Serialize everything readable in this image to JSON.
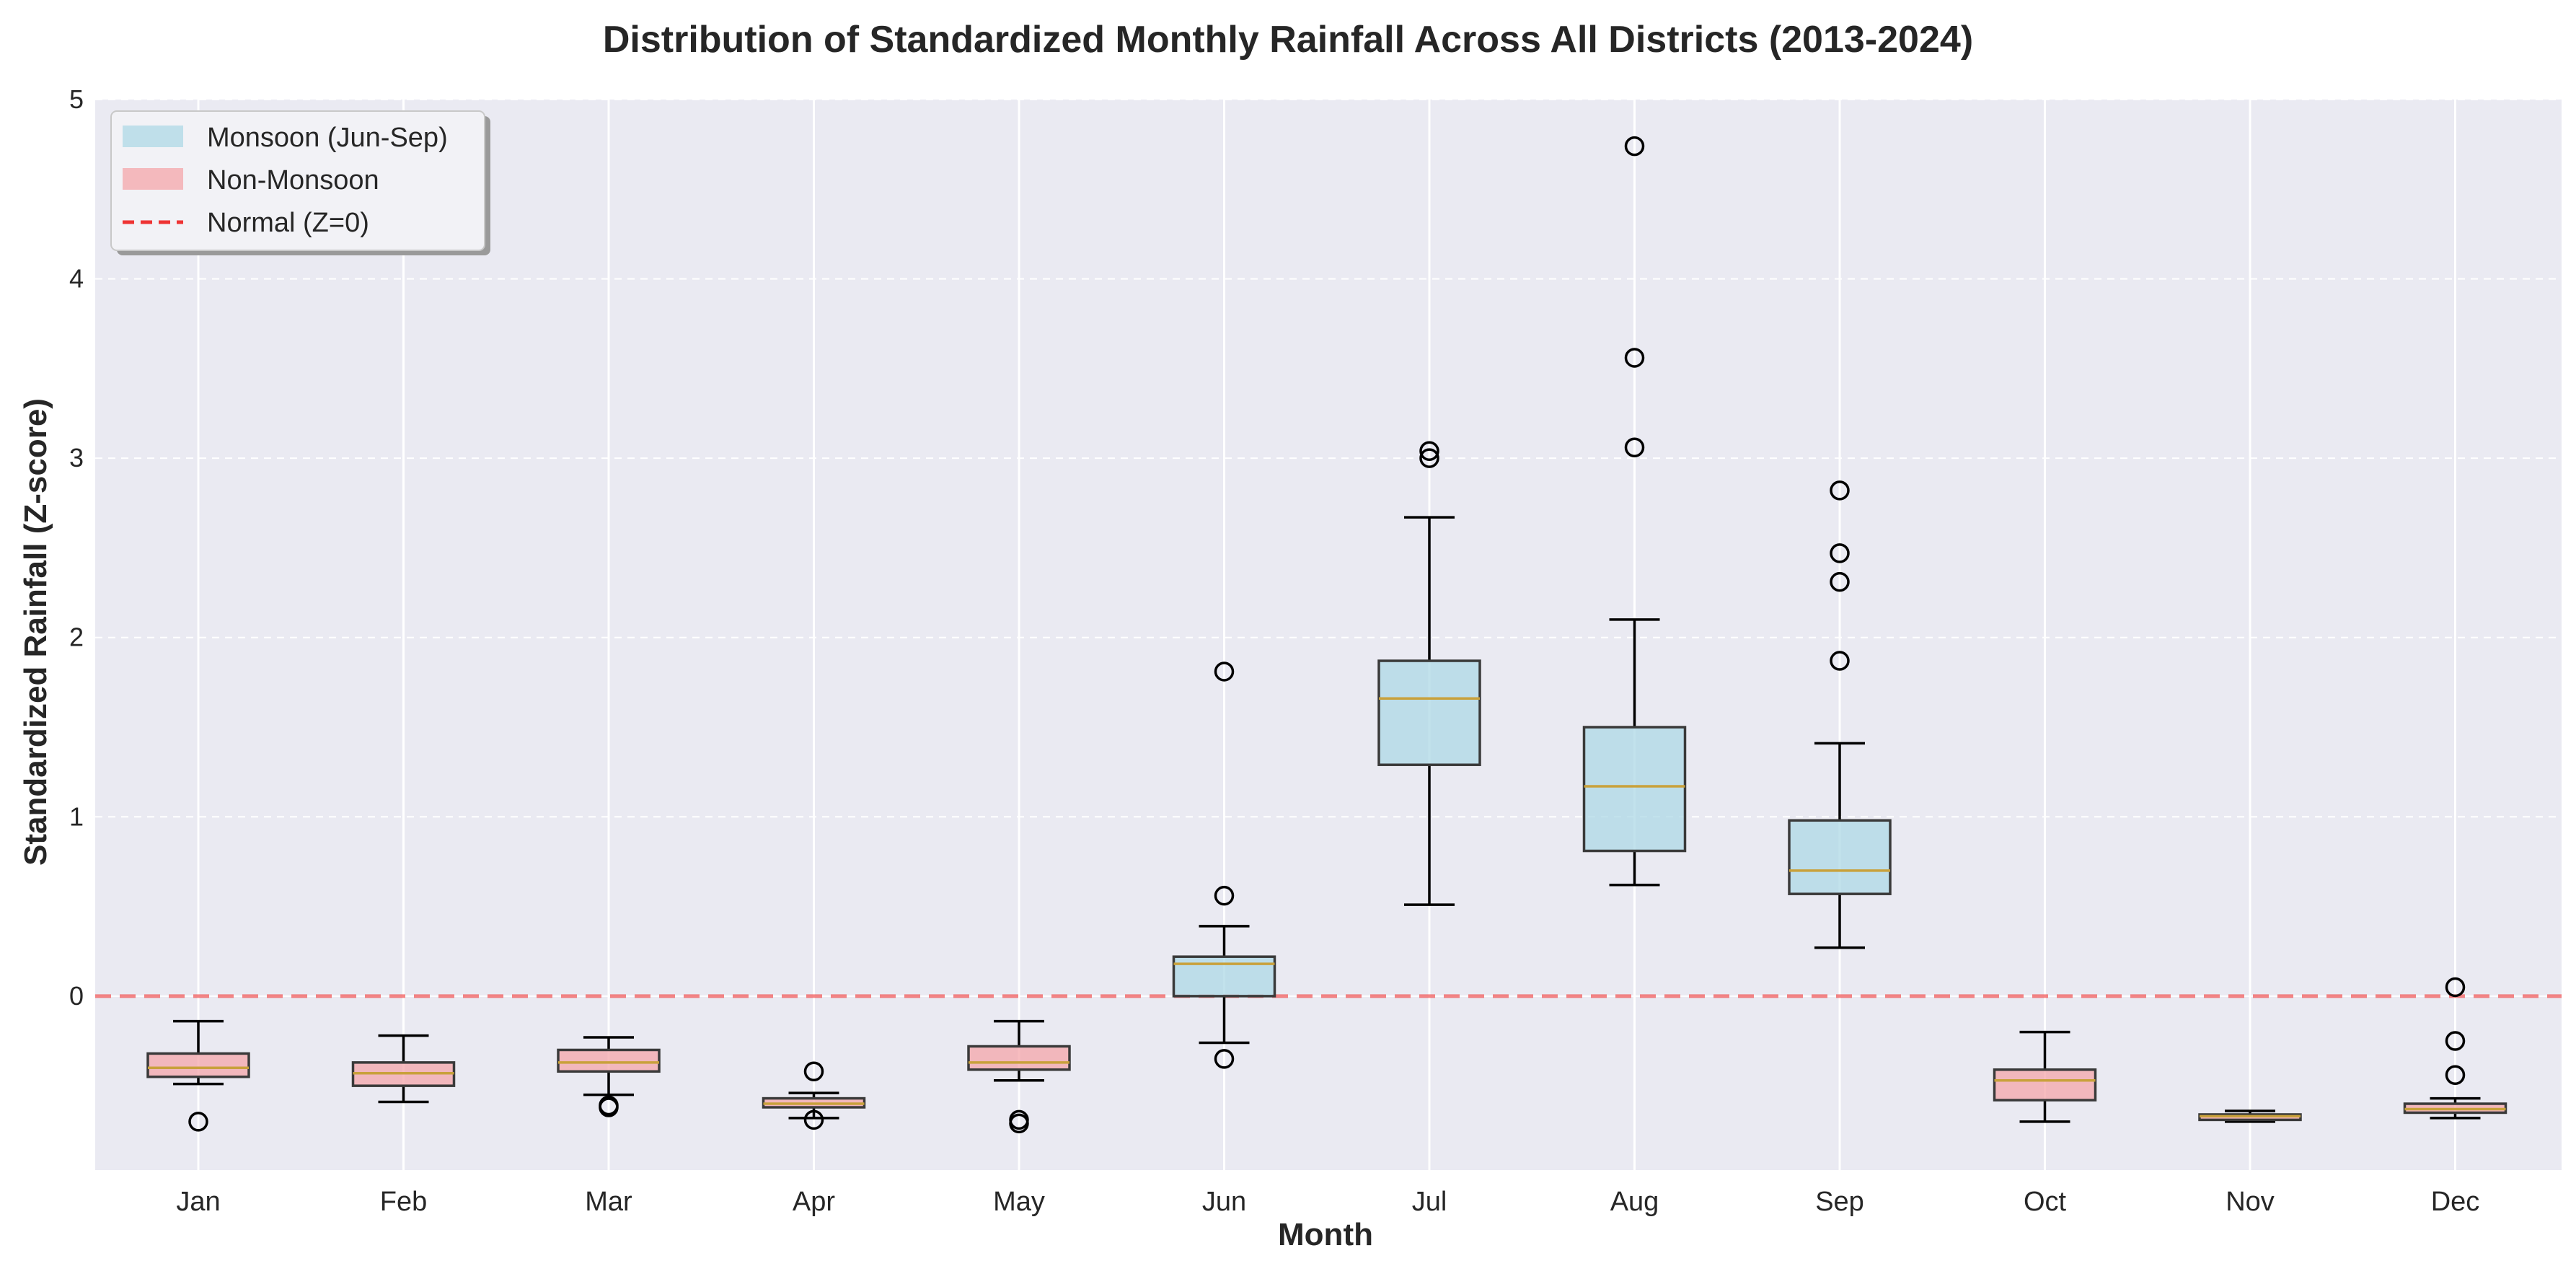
{
  "chart_data": {
    "type": "box",
    "title": "Distribution of Standardized Monthly Rainfall Across All Districts (2013-2024)",
    "xlabel": "Month",
    "ylabel": "Standardized Rainfall (Z-score)",
    "ylim": [
      -0.97,
      5.0
    ],
    "yticks": [
      0,
      1,
      2,
      3,
      4,
      5
    ],
    "grid": true,
    "legend_position": "top-left",
    "colors": {
      "plot_bg": "#eaeaf2",
      "grid": "#ffffff",
      "monsoon": "#add8e6",
      "non_monsoon": "#f4a6aa",
      "median": "#c9a13b",
      "normal_line": "#ee3333"
    },
    "reference_line": {
      "value": 0,
      "label": "Normal (Z=0)"
    },
    "legend": [
      {
        "label": "Monsoon (Jun-Sep)",
        "kind": "patch",
        "color": "#add8e6"
      },
      {
        "label": "Non-Monsoon",
        "kind": "patch",
        "color": "#f4a6aa"
      },
      {
        "label": "Normal (Z=0)",
        "kind": "dashed-line",
        "color": "#ee3333"
      }
    ],
    "categories": [
      "Jan",
      "Feb",
      "Mar",
      "Apr",
      "May",
      "Jun",
      "Jul",
      "Aug",
      "Sep",
      "Oct",
      "Nov",
      "Dec"
    ],
    "boxes": [
      {
        "label": "Jan",
        "group": "non-monsoon",
        "whisker_low": -0.49,
        "q1": -0.45,
        "median": -0.4,
        "q3": -0.32,
        "whisker_high": -0.14,
        "outliers": [
          -0.7
        ]
      },
      {
        "label": "Feb",
        "group": "non-monsoon",
        "whisker_low": -0.59,
        "q1": -0.5,
        "median": -0.43,
        "q3": -0.37,
        "whisker_high": -0.22,
        "outliers": []
      },
      {
        "label": "Mar",
        "group": "non-monsoon",
        "whisker_low": -0.55,
        "q1": -0.42,
        "median": -0.37,
        "q3": -0.3,
        "whisker_high": -0.23,
        "outliers": [
          -0.61,
          -0.62
        ]
      },
      {
        "label": "Apr",
        "group": "non-monsoon",
        "whisker_low": -0.68,
        "q1": -0.62,
        "median": -0.6,
        "q3": -0.57,
        "whisker_high": -0.54,
        "outliers": [
          -0.42,
          -0.69
        ]
      },
      {
        "label": "May",
        "group": "non-monsoon",
        "whisker_low": -0.47,
        "q1": -0.41,
        "median": -0.37,
        "q3": -0.28,
        "whisker_high": -0.14,
        "outliers": [
          -0.69,
          -0.71
        ]
      },
      {
        "label": "Jun",
        "group": "monsoon",
        "whisker_low": -0.26,
        "q1": 0.0,
        "median": 0.18,
        "q3": 0.22,
        "whisker_high": 0.39,
        "outliers": [
          -0.35,
          0.56,
          1.81
        ]
      },
      {
        "label": "Jul",
        "group": "monsoon",
        "whisker_low": 0.51,
        "q1": 1.29,
        "median": 1.66,
        "q3": 1.87,
        "whisker_high": 2.67,
        "outliers": [
          3.0,
          3.04
        ]
      },
      {
        "label": "Aug",
        "group": "monsoon",
        "whisker_low": 0.62,
        "q1": 0.81,
        "median": 1.17,
        "q3": 1.5,
        "whisker_high": 2.1,
        "outliers": [
          3.06,
          3.56,
          4.74
        ]
      },
      {
        "label": "Sep",
        "group": "monsoon",
        "whisker_low": 0.27,
        "q1": 0.57,
        "median": 0.7,
        "q3": 0.98,
        "whisker_high": 1.41,
        "outliers": [
          1.87,
          2.31,
          2.47,
          2.82
        ]
      },
      {
        "label": "Oct",
        "group": "non-monsoon",
        "whisker_low": -0.7,
        "q1": -0.58,
        "median": -0.47,
        "q3": -0.41,
        "whisker_high": -0.2,
        "outliers": []
      },
      {
        "label": "Nov",
        "group": "non-monsoon",
        "whisker_low": -0.7,
        "q1": -0.69,
        "median": -0.67,
        "q3": -0.66,
        "whisker_high": -0.64,
        "outliers": []
      },
      {
        "label": "Dec",
        "group": "non-monsoon",
        "whisker_low": -0.68,
        "q1": -0.65,
        "median": -0.63,
        "q3": -0.6,
        "whisker_high": -0.57,
        "outliers": [
          -0.44,
          -0.25,
          0.05
        ]
      }
    ]
  }
}
